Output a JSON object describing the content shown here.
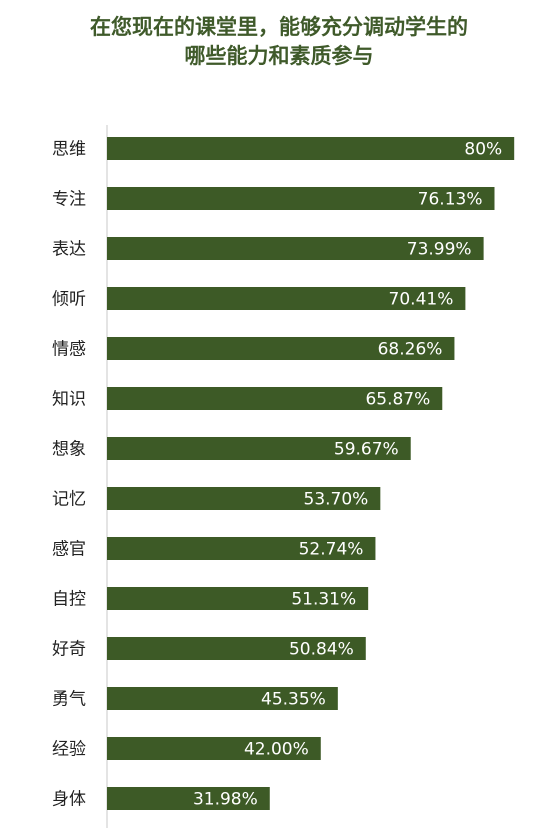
{
  "title_line1": "在您现在的课堂里，能够充分调动学生的",
  "title_line2": "哪些能力和素质参与",
  "colors": {
    "bar": "#3d5a26",
    "title": "#3f5a2a",
    "label": "#222222",
    "value_text": "#ffffff"
  },
  "chart_data": {
    "type": "bar",
    "orientation": "horizontal",
    "categories": [
      "思维",
      "专注",
      "表达",
      "倾听",
      "情感",
      "知识",
      "想象",
      "记忆",
      "感官",
      "自控",
      "好奇",
      "勇气",
      "经验",
      "身体"
    ],
    "values": [
      80,
      76.13,
      73.99,
      70.41,
      68.26,
      65.87,
      59.67,
      53.7,
      52.74,
      51.31,
      50.84,
      45.35,
      42.0,
      31.98
    ],
    "value_labels": [
      "80%",
      "76.13%",
      "73.99%",
      "70.41%",
      "68.26%",
      "65.87%",
      "59.67%",
      "53.70%",
      "52.74%",
      "51.31%",
      "50.84%",
      "45.35%",
      "42.00%",
      "31.98%"
    ],
    "xlim": [
      0,
      100
    ],
    "grid": false,
    "legend": "none"
  }
}
